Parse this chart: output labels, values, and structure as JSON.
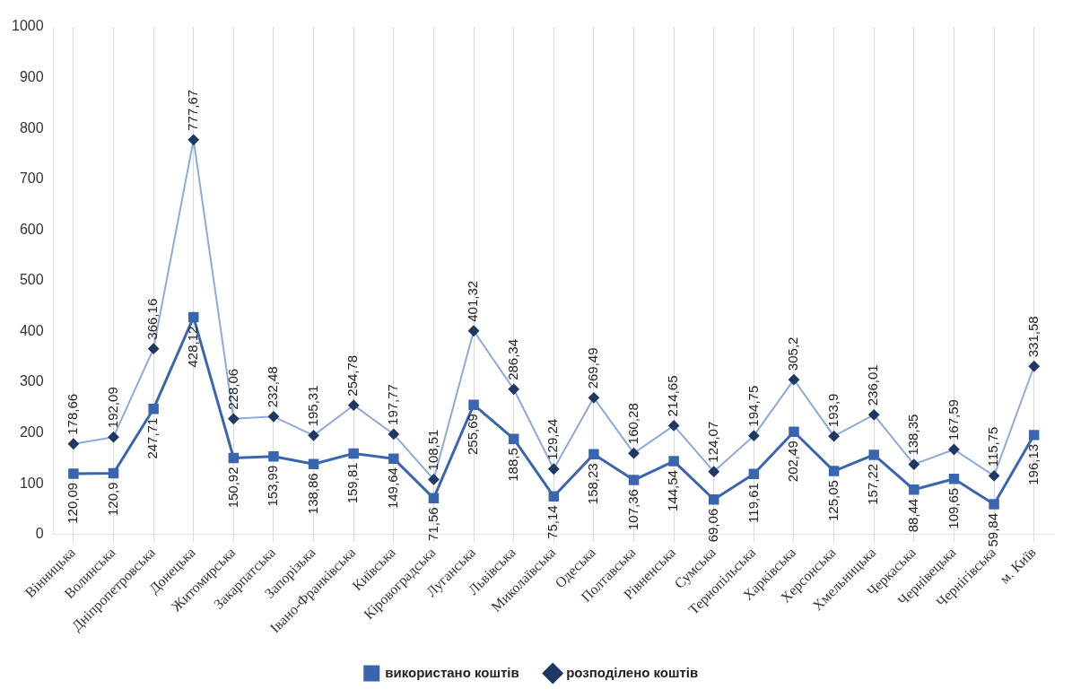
{
  "chart_data": {
    "type": "line",
    "categories": [
      "Вінницька",
      "Волинська",
      "Дніпропетровська",
      "Донецька",
      "Житомирська",
      "Закарпатська",
      "Запорізька",
      "Івано-Франківська",
      "Київська",
      "Кіровоградська",
      "Луганська",
      "Львівська",
      "Миколаївська",
      "Одеська",
      "Полтавська",
      "Рівненська",
      "Сумська",
      "Тернопільська",
      "Харківська",
      "Херсонська",
      "Хмельницька",
      "Черкаська",
      "Чернівецька",
      "Чернігівська",
      "м. Київ"
    ],
    "series": [
      {
        "name": "використано коштів",
        "color": "#3a66b0",
        "marker": "square",
        "values": [
          120.09,
          120.9,
          247.71,
          428.12,
          150.92,
          153.99,
          138.86,
          159.81,
          149.64,
          71.56,
          255.69,
          188.5,
          75.14,
          158.23,
          107.36,
          144.54,
          69.06,
          119.61,
          202.49,
          125.05,
          157.22,
          88.44,
          109.65,
          59.84,
          196.13
        ],
        "value_labels": [
          "120,09",
          "120,9",
          "247,71",
          "428,12",
          "150,92",
          "153,99",
          "138,86",
          "159,81",
          "149,64",
          "71,56",
          "255,69",
          "188,5",
          "75,14",
          "158,23",
          "107,36",
          "144,54",
          "69,06",
          "119,61",
          "202,49",
          "125,05",
          "157,22",
          "88,44",
          "109,65",
          "59,84",
          "196,13"
        ]
      },
      {
        "name": "розподілено коштів",
        "color": "#8eaadb",
        "marker": "diamond",
        "values": [
          178.66,
          192.09,
          366.16,
          777.67,
          228.06,
          232.48,
          195.31,
          254.78,
          197.77,
          108.51,
          401.32,
          286.34,
          129.24,
          269.49,
          160.28,
          214.65,
          124.07,
          194.75,
          305.2,
          193.9,
          236.01,
          138.35,
          167.59,
          115.75,
          331.58
        ],
        "value_labels": [
          "178,66",
          "192,09",
          "366,16",
          "777,67",
          "228,06",
          "232,48",
          "195,31",
          "254,78",
          "197,77",
          "108,51",
          "401,32",
          "286,34",
          "129,24",
          "269,49",
          "160,28",
          "214,65",
          "124,07",
          "194,75",
          "305,2",
          "193,9",
          "236,01",
          "138,35",
          "167,59",
          "115,75",
          "331,58"
        ]
      }
    ],
    "ylim": [
      0,
      1000
    ],
    "yticks": [
      0,
      100,
      200,
      300,
      400,
      500,
      600,
      700,
      800,
      900,
      1000
    ],
    "grid": "x",
    "legend": "bottom"
  }
}
